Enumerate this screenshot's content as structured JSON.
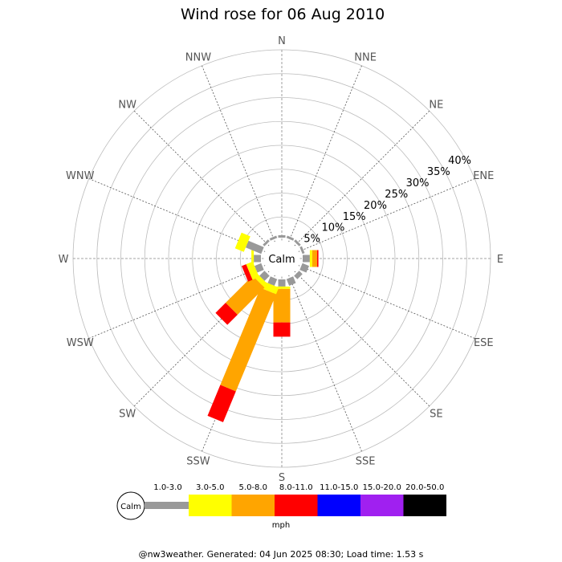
{
  "chart_data": {
    "type": "windrose",
    "title": "Wind rose for 06 Aug 2010",
    "center_label": "Calm",
    "directions": [
      "N",
      "NNE",
      "NE",
      "ENE",
      "E",
      "ESE",
      "SE",
      "SSE",
      "S",
      "SSW",
      "SW",
      "WSW",
      "W",
      "WNW",
      "NW",
      "NNW"
    ],
    "radial_ticks": [
      "5%",
      "10%",
      "15%",
      "20%",
      "25%",
      "30%",
      "35%",
      "40%"
    ],
    "radial_max": 40,
    "unit": "mph",
    "speed_bins": [
      {
        "label": "1.0-3.0",
        "color": "#999999"
      },
      {
        "label": "3.0-5.0",
        "color": "#ffff00"
      },
      {
        "label": "5.0-8.0",
        "color": "#ffa500"
      },
      {
        "label": "8.0-11.0",
        "color": "#ff0000"
      },
      {
        "label": "11.0-15.0",
        "color": "#0000ff"
      },
      {
        "label": "15.0-20.0",
        "color": "#a020f0"
      },
      {
        "label": "20.0-50.0",
        "color": "#000000"
      }
    ],
    "series": [
      {
        "direction": "E",
        "values": [
          1.5,
          0.5,
          1.0,
          0.3,
          0,
          0,
          0
        ]
      },
      {
        "direction": "ESE",
        "values": [
          1.5,
          0,
          0,
          0,
          0,
          0,
          0
        ]
      },
      {
        "direction": "SE",
        "values": [
          1.0,
          0,
          0,
          0,
          0,
          0,
          0
        ]
      },
      {
        "direction": "SSE",
        "values": [
          1.5,
          0,
          0,
          0,
          0,
          0,
          0
        ]
      },
      {
        "direction": "S",
        "values": [
          1.5,
          0.5,
          7.0,
          3.0,
          0,
          0,
          0
        ]
      },
      {
        "direction": "SSW",
        "values": [
          1.5,
          1.5,
          22.0,
          7.0,
          0,
          0,
          0
        ]
      },
      {
        "direction": "SW",
        "values": [
          1.5,
          1.0,
          8.0,
          3.0,
          0,
          0,
          0
        ]
      },
      {
        "direction": "WSW",
        "values": [
          1.5,
          1.5,
          0,
          1.0,
          0,
          0,
          0
        ]
      },
      {
        "direction": "W",
        "values": [
          1.5,
          0.5,
          0,
          0,
          0,
          0,
          0
        ]
      },
      {
        "direction": "WNW",
        "values": [
          3.5,
          2.0,
          0,
          0,
          0,
          0,
          0
        ]
      },
      {
        "direction": "NW",
        "values": [
          0.5,
          0,
          0,
          0,
          0,
          0,
          0
        ]
      },
      {
        "direction": "NNW",
        "values": [
          0.5,
          0,
          0,
          0,
          0,
          0,
          0
        ]
      },
      {
        "direction": "N",
        "values": [
          0.5,
          0,
          0,
          0,
          0,
          0,
          0
        ]
      },
      {
        "direction": "NNE",
        "values": [
          0.5,
          0,
          0,
          0,
          0,
          0,
          0
        ]
      },
      {
        "direction": "NE",
        "values": [
          0.5,
          0,
          0,
          0,
          0,
          0,
          0
        ]
      },
      {
        "direction": "ENE",
        "values": [
          0.5,
          0,
          0,
          0,
          0,
          0,
          0
        ]
      }
    ]
  },
  "footer": "@nw3weather. Generated: 04 Jun 2025 08:30; Load time: 1.53 s"
}
